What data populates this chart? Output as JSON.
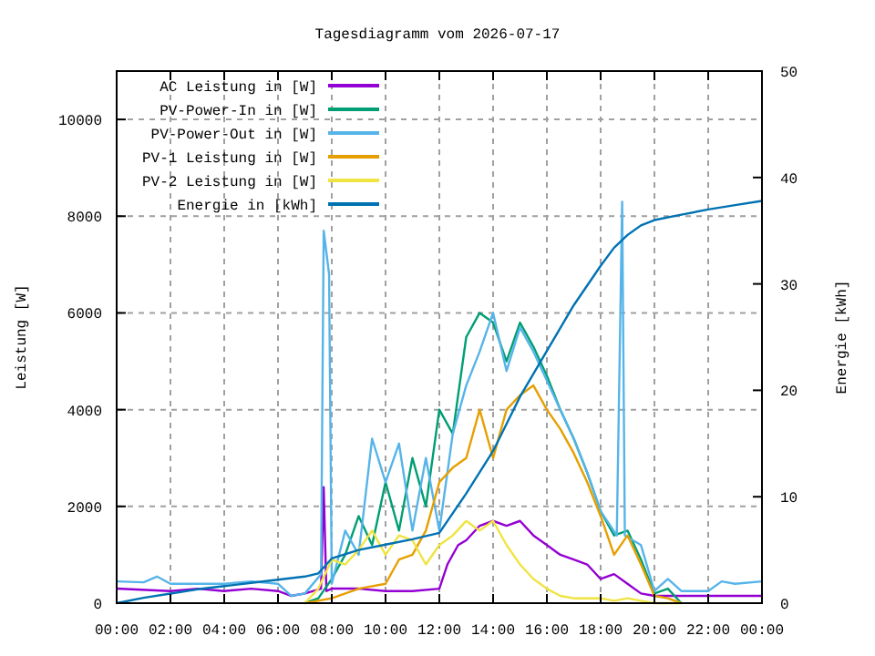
{
  "chart_data": {
    "type": "line",
    "title": "Tagesdiagramm vom 2026-07-17",
    "ylabel": "Leistung [W]",
    "y2label": "Energie [kWh]",
    "xlim": [
      0,
      24
    ],
    "xticks": [
      {
        "value": 0,
        "label": "00:00"
      },
      {
        "value": 2,
        "label": "02:00"
      },
      {
        "value": 4,
        "label": "04:00"
      },
      {
        "value": 6,
        "label": "06:00"
      },
      {
        "value": 8,
        "label": "08:00"
      },
      {
        "value": 10,
        "label": "10:00"
      },
      {
        "value": 12,
        "label": "12:00"
      },
      {
        "value": 14,
        "label": "14:00"
      },
      {
        "value": 16,
        "label": "16:00"
      },
      {
        "value": 18,
        "label": "18:00"
      },
      {
        "value": 20,
        "label": "20:00"
      },
      {
        "value": 22,
        "label": "22:00"
      },
      {
        "value": 24,
        "label": "00:00"
      }
    ],
    "ylim": [
      0,
      11000
    ],
    "yticks": [
      0,
      2000,
      4000,
      6000,
      8000,
      10000
    ],
    "y2lim": [
      0,
      50
    ],
    "y2ticks": [
      0,
      10,
      20,
      30,
      40,
      50
    ],
    "grid": true,
    "legend": "top left",
    "line_style": "solid",
    "series": [
      {
        "name": "AC Leistung in [W]",
        "color": "#9400d3",
        "x": [
          0,
          2,
          3,
          4,
          5,
          6,
          6.5,
          7,
          7.6,
          7.7,
          7.8,
          8,
          9,
          10,
          11,
          12,
          12.3,
          12.7,
          13,
          13.5,
          14,
          14.5,
          15,
          15.5,
          16,
          16.5,
          17,
          17.5,
          18,
          18.5,
          19,
          19.5,
          20,
          21,
          22,
          23,
          24
        ],
        "values": [
          300,
          250,
          300,
          250,
          300,
          250,
          150,
          200,
          300,
          2400,
          250,
          300,
          300,
          250,
          250,
          300,
          800,
          1200,
          1300,
          1600,
          1700,
          1600,
          1700,
          1400,
          1200,
          1000,
          900,
          800,
          500,
          600,
          400,
          200,
          150,
          150,
          150,
          150,
          150
        ]
      },
      {
        "name": "PV-Power-In in [W]",
        "color": "#009e73",
        "x": [
          7,
          7.5,
          8,
          8.5,
          9,
          9.5,
          10,
          10.5,
          11,
          11.5,
          12,
          12.5,
          13,
          13.5,
          14,
          14.5,
          15,
          15.5,
          16,
          16.5,
          17,
          17.5,
          18,
          18.5,
          19,
          19.5,
          20,
          20.5,
          21
        ],
        "values": [
          0,
          100,
          500,
          1000,
          1800,
          1200,
          2500,
          1500,
          3000,
          2000,
          4000,
          3500,
          5500,
          6000,
          5800,
          5000,
          5800,
          5300,
          4700,
          4000,
          3400,
          2700,
          1900,
          1400,
          1500,
          900,
          200,
          300,
          0
        ]
      },
      {
        "name": "PV-Power-Out in [W]",
        "color": "#56b4e9",
        "x": [
          0,
          1,
          1.5,
          2,
          3,
          4,
          5,
          6,
          6.5,
          7,
          7.6,
          7.7,
          7.9,
          8,
          8.5,
          9,
          9.5,
          10,
          10.5,
          11,
          11.5,
          12,
          12.5,
          13,
          13.5,
          14,
          14.5,
          15,
          15.5,
          16,
          16.5,
          17,
          17.5,
          18,
          18.6,
          18.8,
          18.9,
          19.5,
          20,
          20.5,
          21,
          21.5,
          22,
          22.5,
          23,
          24
        ],
        "values": [
          450,
          430,
          550,
          400,
          400,
          400,
          450,
          400,
          150,
          200,
          600,
          7700,
          6800,
          400,
          1500,
          1000,
          3400,
          2500,
          3300,
          1500,
          3000,
          1500,
          3500,
          4500,
          5200,
          6000,
          4800,
          5700,
          5200,
          4600,
          4000,
          3400,
          2700,
          1900,
          1400,
          8300,
          1400,
          1200,
          250,
          500,
          250,
          250,
          250,
          450,
          400,
          450
        ]
      },
      {
        "name": "PV-1 Leistung in [W]",
        "color": "#e69f00",
        "x": [
          7,
          8,
          9,
          10,
          10.5,
          11,
          11.5,
          12,
          12.5,
          13,
          13.5,
          14,
          14.5,
          15,
          15.5,
          16,
          16.5,
          17,
          17.5,
          18,
          18.5,
          19,
          19.5,
          20,
          20.5,
          21
        ],
        "values": [
          0,
          100,
          300,
          400,
          900,
          1000,
          1500,
          2500,
          2800,
          3000,
          4000,
          3000,
          4000,
          4300,
          4500,
          4000,
          3600,
          3100,
          2500,
          1800,
          1000,
          1400,
          800,
          150,
          100,
          0
        ]
      },
      {
        "name": "PV-2 Leistung in [W]",
        "color": "#f0e442",
        "x": [
          7,
          7.5,
          8,
          8.5,
          9,
          9.5,
          10,
          10.5,
          11,
          11.5,
          12,
          12.5,
          13,
          13.5,
          14,
          14.5,
          15,
          15.5,
          16,
          16.5,
          17,
          18,
          18.5,
          19,
          19.5,
          20,
          21
        ],
        "values": [
          0,
          300,
          900,
          800,
          1100,
          1500,
          1000,
          1400,
          1300,
          800,
          1200,
          1400,
          1700,
          1500,
          1700,
          1200,
          800,
          500,
          300,
          150,
          100,
          100,
          50,
          100,
          50,
          0,
          0
        ]
      },
      {
        "name": "Energie in [kWh]",
        "color": "#0072b2",
        "axis": "y2",
        "x": [
          0,
          1,
          2,
          3,
          4,
          5,
          6,
          7,
          7.5,
          8,
          9,
          10,
          11,
          12,
          13,
          14,
          15,
          16,
          17,
          18,
          18.5,
          19,
          19.5,
          20,
          21,
          22,
          23,
          24
        ],
        "values": [
          0,
          0.5,
          0.9,
          1.3,
          1.6,
          1.9,
          2.2,
          2.5,
          2.8,
          4.2,
          5.0,
          5.5,
          6.0,
          6.6,
          10.3,
          14.3,
          19.4,
          23.7,
          28,
          31.7,
          33.4,
          34.6,
          35.5,
          36,
          36.5,
          37,
          37.4,
          37.8
        ]
      }
    ]
  }
}
